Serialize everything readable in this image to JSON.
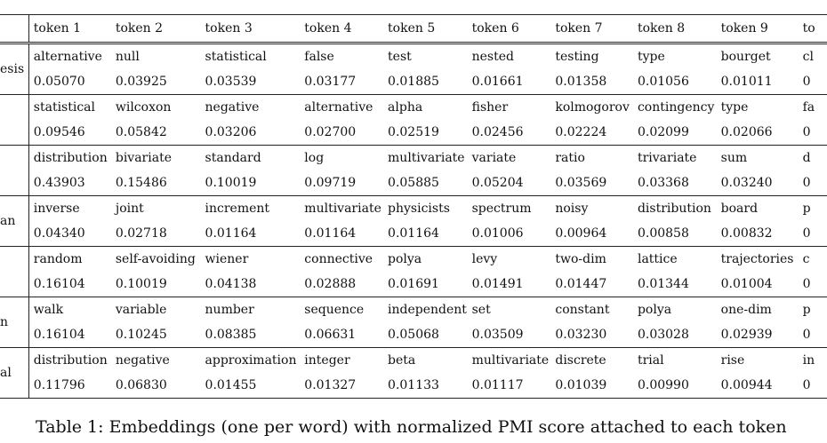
{
  "table": {
    "columns": [
      "token 1",
      "token 2",
      "token 3",
      "token 4",
      "token 5",
      "token 6",
      "token 7",
      "token 8",
      "token 9",
      "to"
    ],
    "rows": [
      {
        "word": "esis",
        "tokens": [
          "alternative",
          "null",
          "statistical",
          "false",
          "test",
          "nested",
          "testing",
          "type",
          "bourget",
          "cl"
        ],
        "scores": [
          "0.05070",
          "0.03925",
          "0.03539",
          "0.03177",
          "0.01885",
          "0.01661",
          "0.01358",
          "0.01056",
          "0.01011",
          "0"
        ]
      },
      {
        "word": "",
        "tokens": [
          "statistical",
          "wilcoxon",
          "negative",
          "alternative",
          "alpha",
          "fisher",
          "kolmogorov",
          "contingency",
          "type",
          "fa"
        ],
        "scores": [
          "0.09546",
          "0.05842",
          "0.03206",
          "0.02700",
          "0.02519",
          "0.02456",
          "0.02224",
          "0.02099",
          "0.02066",
          "0"
        ]
      },
      {
        "word": "",
        "tokens": [
          "distribution",
          "bivariate",
          "standard",
          "log",
          "multivariate",
          "variate",
          "ratio",
          "trivariate",
          "sum",
          "d"
        ],
        "scores": [
          "0.43903",
          "0.15486",
          "0.10019",
          "0.09719",
          "0.05885",
          "0.05204",
          "0.03569",
          "0.03368",
          "0.03240",
          "0"
        ]
      },
      {
        "word": "an",
        "tokens": [
          "inverse",
          "joint",
          "increment",
          "multivariate",
          "physicists",
          "spectrum",
          "noisy",
          "distribution",
          "board",
          "p"
        ],
        "scores": [
          "0.04340",
          "0.02718",
          "0.01164",
          "0.01164",
          "0.01164",
          "0.01006",
          "0.00964",
          "0.00858",
          "0.00832",
          "0"
        ]
      },
      {
        "word": "",
        "tokens": [
          "random",
          "self-avoiding",
          "wiener",
          "connective",
          "polya",
          "levy",
          "two-dim",
          "lattice",
          "trajectories",
          "c"
        ],
        "scores": [
          "0.16104",
          "0.10019",
          "0.04138",
          "0.02888",
          "0.01691",
          "0.01491",
          "0.01447",
          "0.01344",
          "0.01004",
          "0"
        ]
      },
      {
        "word": "n",
        "tokens": [
          "walk",
          "variable",
          "number",
          "sequence",
          "independent",
          "set",
          "constant",
          "polya",
          "one-dim",
          "p"
        ],
        "scores": [
          "0.16104",
          "0.10245",
          "0.08385",
          "0.06631",
          "0.05068",
          "0.03509",
          "0.03230",
          "0.03028",
          "0.02939",
          "0"
        ]
      },
      {
        "word": "al",
        "tokens": [
          "distribution",
          "negative",
          "approximation",
          "integer",
          "beta",
          "multivariate",
          "discrete",
          "trial",
          "rise",
          "in"
        ],
        "scores": [
          "0.11796",
          "0.06830",
          "0.01455",
          "0.01327",
          "0.01133",
          "0.01117",
          "0.01039",
          "0.00990",
          "0.00944",
          "0"
        ]
      }
    ]
  },
  "caption": "Table 1:  Embeddings (one per word) with normalized PMI score attached to each token"
}
